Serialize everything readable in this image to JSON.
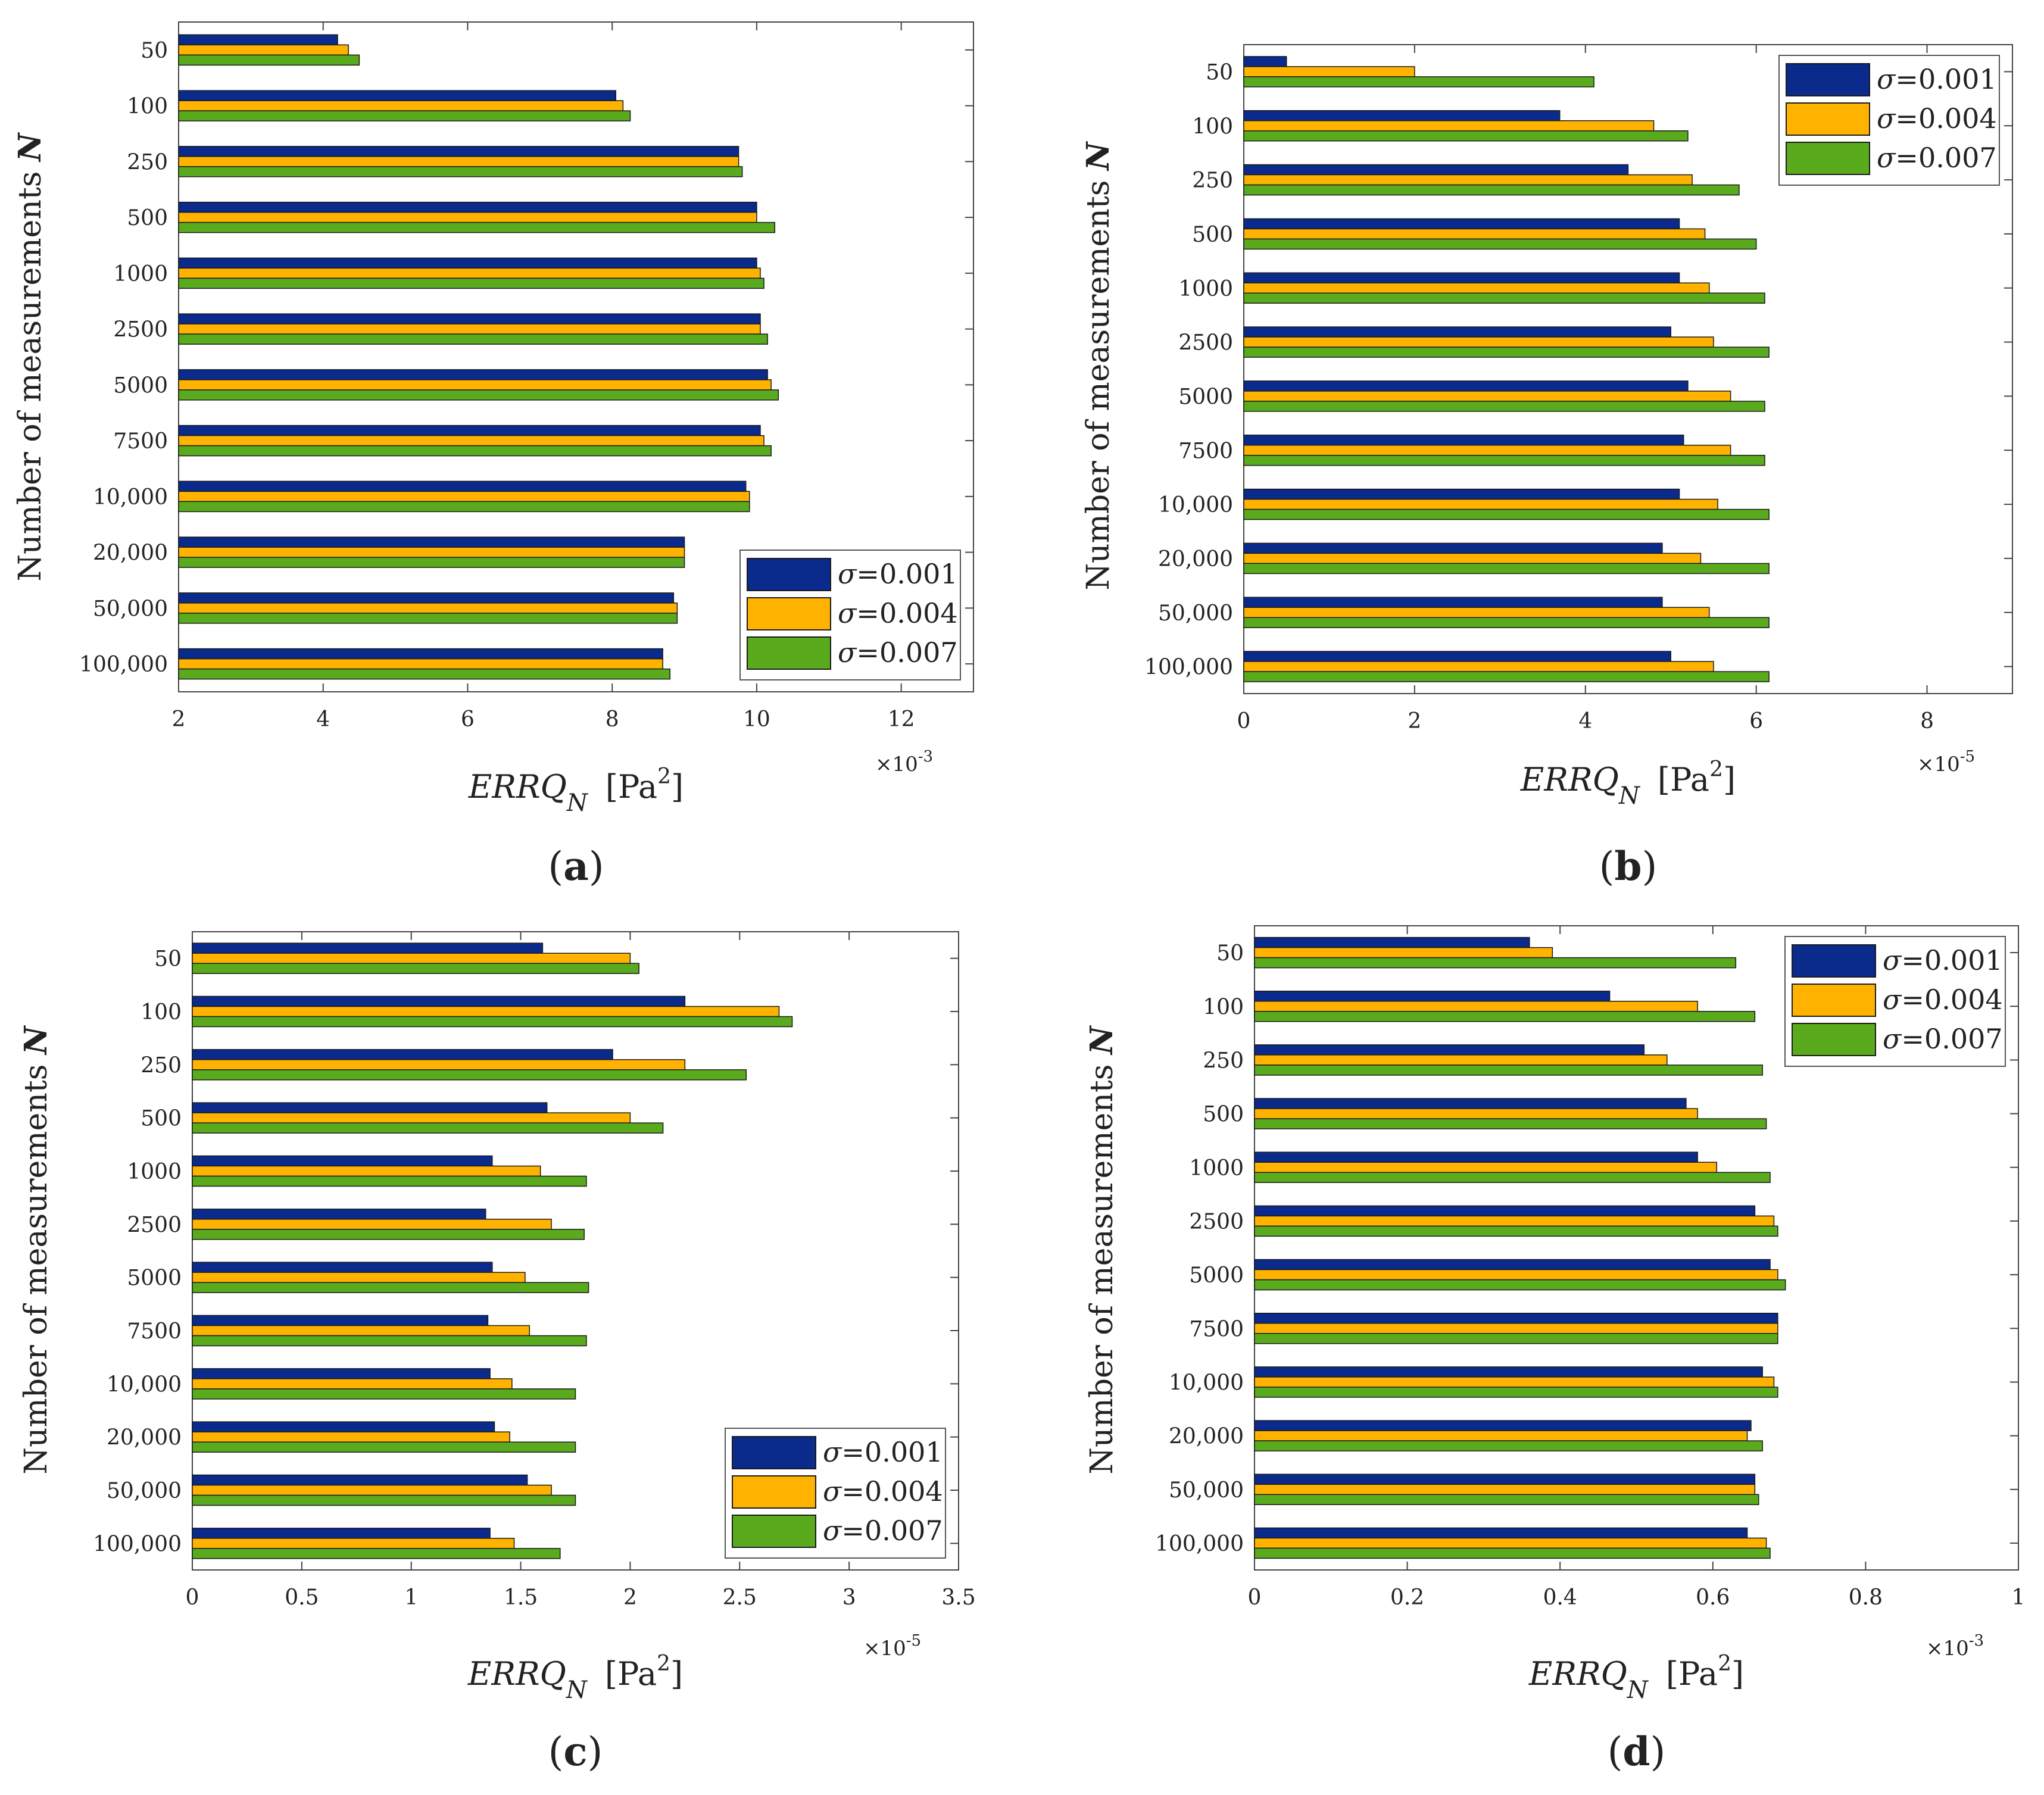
{
  "figure": {
    "y_axis_label": "Number of measurements N",
    "x_axis_label_main": "ERRQ",
    "x_axis_label_sub": "N",
    "x_axis_unit": "[Pa",
    "x_axis_unit_sup": "2",
    "x_axis_unit_close": "]",
    "colors": {
      "sigma_0001": "#0a2a8c",
      "sigma_0004": "#ffb300",
      "sigma_0007": "#5aaa1e"
    },
    "legend_labels": [
      "σ=0.001",
      "σ=0.004",
      "σ=0.007"
    ]
  },
  "chart_data": [
    {
      "panel": "(a)",
      "panel_letter": "a",
      "type": "bar",
      "orientation": "horizontal",
      "categories": [
        "50",
        "100",
        "250",
        "500",
        "1000",
        "2500",
        "5000",
        "7500",
        "10,000",
        "20,000",
        "50,000",
        "100,000"
      ],
      "series": [
        {
          "name": "σ=0.001",
          "values": [
            4.2,
            8.05,
            9.75,
            10.0,
            10.0,
            10.05,
            10.15,
            10.05,
            9.85,
            9.0,
            8.85,
            8.7
          ]
        },
        {
          "name": "σ=0.004",
          "values": [
            4.35,
            8.15,
            9.75,
            10.0,
            10.05,
            10.05,
            10.2,
            10.1,
            9.9,
            9.0,
            8.9,
            8.7
          ]
        },
        {
          "name": "σ=0.007",
          "values": [
            4.5,
            8.25,
            9.8,
            10.25,
            10.1,
            10.15,
            10.3,
            10.2,
            9.9,
            9.0,
            8.9,
            8.8
          ]
        }
      ],
      "xlim": [
        2,
        13
      ],
      "xticks": [
        2,
        4,
        6,
        8,
        10,
        12
      ],
      "xtick_labels": [
        "2",
        "4",
        "6",
        "8",
        "10",
        "12"
      ],
      "x_multiplier": "×10",
      "x_multiplier_exp": "-3",
      "legend_position": "bottom-right"
    },
    {
      "panel": "(b)",
      "panel_letter": "b",
      "type": "bar",
      "orientation": "horizontal",
      "categories": [
        "50",
        "100",
        "250",
        "500",
        "1000",
        "2500",
        "5000",
        "7500",
        "10,000",
        "20,000",
        "50,000",
        "100,000"
      ],
      "series": [
        {
          "name": "σ=0.001",
          "values": [
            0.5,
            3.7,
            4.5,
            5.1,
            5.1,
            5.0,
            5.2,
            5.15,
            5.1,
            4.9,
            4.9,
            5.0
          ]
        },
        {
          "name": "σ=0.004",
          "values": [
            2.0,
            4.8,
            5.25,
            5.4,
            5.45,
            5.5,
            5.7,
            5.7,
            5.55,
            5.35,
            5.45,
            5.5
          ]
        },
        {
          "name": "σ=0.007",
          "values": [
            4.1,
            5.2,
            5.8,
            6.0,
            6.1,
            6.15,
            6.1,
            6.1,
            6.15,
            6.15,
            6.15,
            6.15
          ]
        }
      ],
      "xlim": [
        0,
        9
      ],
      "xticks": [
        0,
        2,
        4,
        6,
        8
      ],
      "xtick_labels": [
        "0",
        "2",
        "4",
        "6",
        "8"
      ],
      "x_multiplier": "×10",
      "x_multiplier_exp": "-5",
      "legend_position": "top-right"
    },
    {
      "panel": "(c)",
      "panel_letter": "c",
      "type": "bar",
      "orientation": "horizontal",
      "categories": [
        "50",
        "100",
        "250",
        "500",
        "1000",
        "2500",
        "5000",
        "7500",
        "10,000",
        "20,000",
        "50,000",
        "100,000"
      ],
      "series": [
        {
          "name": "σ=0.001",
          "values": [
            1.6,
            2.25,
            1.92,
            1.62,
            1.37,
            1.34,
            1.37,
            1.35,
            1.36,
            1.38,
            1.53,
            1.36
          ]
        },
        {
          "name": "σ=0.004",
          "values": [
            2.0,
            2.68,
            2.25,
            2.0,
            1.59,
            1.64,
            1.52,
            1.54,
            1.46,
            1.45,
            1.64,
            1.47
          ]
        },
        {
          "name": "σ=0.007",
          "values": [
            2.04,
            2.74,
            2.53,
            2.15,
            1.8,
            1.79,
            1.81,
            1.8,
            1.75,
            1.75,
            1.75,
            1.68
          ]
        }
      ],
      "xlim": [
        0,
        3.5
      ],
      "xticks": [
        0,
        0.5,
        1,
        1.5,
        2,
        2.5,
        3,
        3.5
      ],
      "xtick_labels": [
        "0",
        "0.5",
        "1",
        "1.5",
        "2",
        "2.5",
        "3",
        "3.5"
      ],
      "x_multiplier": "×10",
      "x_multiplier_exp": "-5",
      "legend_position": "bottom-right"
    },
    {
      "panel": "(d)",
      "panel_letter": "d",
      "type": "bar",
      "orientation": "horizontal",
      "categories": [
        "50",
        "100",
        "250",
        "500",
        "1000",
        "2500",
        "5000",
        "7500",
        "10,000",
        "20,000",
        "50,000",
        "100,000"
      ],
      "series": [
        {
          "name": "σ=0.001",
          "values": [
            0.36,
            0.465,
            0.51,
            0.565,
            0.58,
            0.655,
            0.675,
            0.685,
            0.665,
            0.65,
            0.655,
            0.645
          ]
        },
        {
          "name": "σ=0.004",
          "values": [
            0.39,
            0.58,
            0.54,
            0.58,
            0.605,
            0.68,
            0.685,
            0.685,
            0.68,
            0.645,
            0.655,
            0.67
          ]
        },
        {
          "name": "σ=0.007",
          "values": [
            0.63,
            0.655,
            0.665,
            0.67,
            0.675,
            0.685,
            0.695,
            0.685,
            0.685,
            0.665,
            0.66,
            0.675
          ]
        }
      ],
      "xlim": [
        0,
        1
      ],
      "xticks": [
        0,
        0.2,
        0.4,
        0.6,
        0.8,
        1
      ],
      "xtick_labels": [
        "0",
        "0.2",
        "0.4",
        "0.6",
        "0.8",
        "1"
      ],
      "x_multiplier": "×10",
      "x_multiplier_exp": "-3",
      "legend_position": "top-right"
    }
  ]
}
